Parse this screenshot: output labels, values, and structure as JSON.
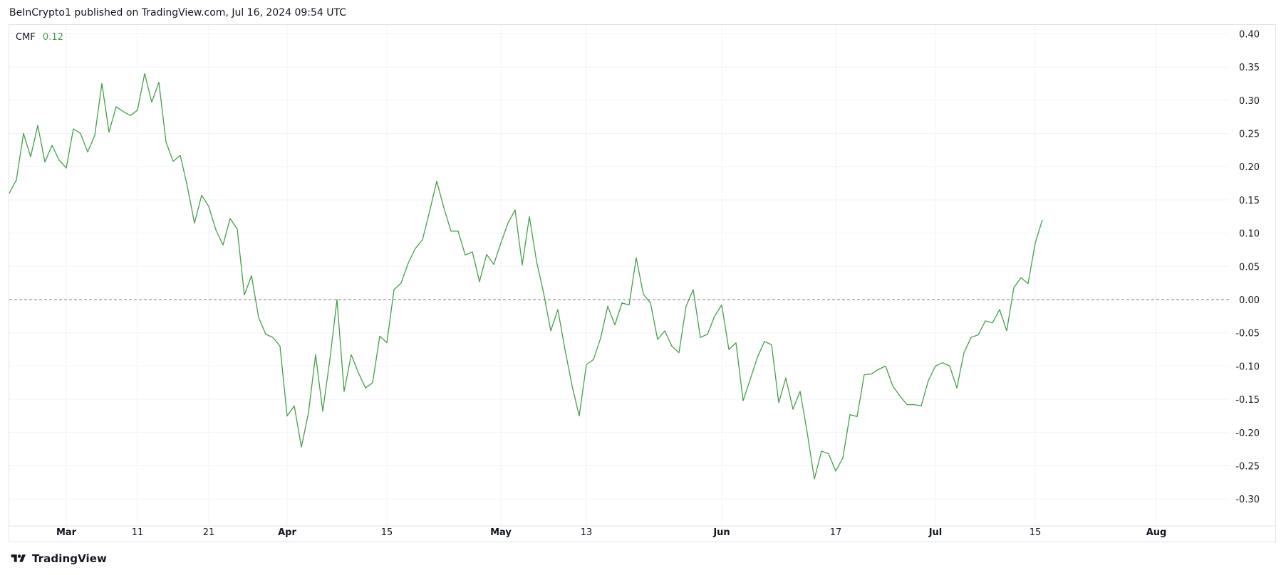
{
  "header": {
    "published": "BeInCrypto1 published on TradingView.com, Jul 16, 2024 09:54 UTC"
  },
  "legend": {
    "name": "CMF",
    "value": "0.12"
  },
  "brand": {
    "name": "TradingView"
  },
  "colors": {
    "line": "#43a047",
    "grid": "#f0f3fa",
    "zero": "#787b86"
  },
  "chart_data": {
    "type": "line",
    "indicator": "CMF",
    "ylim": [
      -0.33,
      0.41
    ],
    "y_ticks": [
      0.4,
      0.35,
      0.3,
      0.25,
      0.2,
      0.15,
      0.1,
      0.05,
      0.0,
      -0.05,
      -0.1,
      -0.15,
      -0.2,
      -0.25,
      -0.3
    ],
    "x_ticks": [
      {
        "label": "Mar",
        "date": "2024-03-01",
        "bold": true
      },
      {
        "label": "11",
        "date": "2024-03-11",
        "bold": false
      },
      {
        "label": "21",
        "date": "2024-03-21",
        "bold": false
      },
      {
        "label": "Apr",
        "date": "2024-04-01",
        "bold": true
      },
      {
        "label": "15",
        "date": "2024-04-15",
        "bold": false
      },
      {
        "label": "May",
        "date": "2024-05-01",
        "bold": true
      },
      {
        "label": "13",
        "date": "2024-05-13",
        "bold": false
      },
      {
        "label": "Jun",
        "date": "2024-06-01",
        "bold": true
      },
      {
        "label": "17",
        "date": "2024-06-17",
        "bold": false
      },
      {
        "label": "Jul",
        "date": "2024-07-01",
        "bold": true
      },
      {
        "label": "15",
        "date": "2024-07-15",
        "bold": false
      },
      {
        "label": "Aug",
        "date": "2024-08-01",
        "bold": true
      }
    ],
    "xlim": [
      "2024-02-22",
      "2024-08-05"
    ],
    "zero_line": 0.0,
    "grid": true,
    "series": [
      {
        "values": [
          [
            "2024-02-22",
            0.16
          ],
          [
            "2024-02-23",
            0.18
          ],
          [
            "2024-02-24",
            0.25
          ],
          [
            "2024-02-25",
            0.215
          ],
          [
            "2024-02-26",
            0.262
          ],
          [
            "2024-02-27",
            0.207
          ],
          [
            "2024-02-28",
            0.232
          ],
          [
            "2024-02-29",
            0.21
          ],
          [
            "2024-03-01",
            0.198
          ],
          [
            "2024-03-02",
            0.257
          ],
          [
            "2024-03-03",
            0.25
          ],
          [
            "2024-03-04",
            0.222
          ],
          [
            "2024-03-05",
            0.247
          ],
          [
            "2024-03-06",
            0.325
          ],
          [
            "2024-03-07",
            0.252
          ],
          [
            "2024-03-08",
            0.29
          ],
          [
            "2024-03-09",
            0.283
          ],
          [
            "2024-03-10",
            0.277
          ],
          [
            "2024-03-11",
            0.285
          ],
          [
            "2024-03-12",
            0.34
          ],
          [
            "2024-03-13",
            0.297
          ],
          [
            "2024-03-14",
            0.327
          ],
          [
            "2024-03-15",
            0.237
          ],
          [
            "2024-03-16",
            0.208
          ],
          [
            "2024-03-17",
            0.217
          ],
          [
            "2024-03-18",
            0.17
          ],
          [
            "2024-03-19",
            0.115
          ],
          [
            "2024-03-20",
            0.157
          ],
          [
            "2024-03-21",
            0.14
          ],
          [
            "2024-03-22",
            0.105
          ],
          [
            "2024-03-23",
            0.082
          ],
          [
            "2024-03-24",
            0.122
          ],
          [
            "2024-03-25",
            0.106
          ],
          [
            "2024-03-26",
            0.007
          ],
          [
            "2024-03-27",
            0.036
          ],
          [
            "2024-03-28",
            -0.027
          ],
          [
            "2024-03-29",
            -0.052
          ],
          [
            "2024-03-30",
            -0.057
          ],
          [
            "2024-03-31",
            -0.07
          ],
          [
            "2024-04-01",
            -0.175
          ],
          [
            "2024-04-02",
            -0.16
          ],
          [
            "2024-04-03",
            -0.222
          ],
          [
            "2024-04-04",
            -0.17
          ],
          [
            "2024-04-05",
            -0.083
          ],
          [
            "2024-04-06",
            -0.168
          ],
          [
            "2024-04-07",
            -0.09
          ],
          [
            "2024-04-08",
            0.0
          ],
          [
            "2024-04-09",
            -0.138
          ],
          [
            "2024-04-10",
            -0.083
          ],
          [
            "2024-04-11",
            -0.11
          ],
          [
            "2024-04-12",
            -0.133
          ],
          [
            "2024-04-13",
            -0.125
          ],
          [
            "2024-04-14",
            -0.055
          ],
          [
            "2024-04-15",
            -0.065
          ],
          [
            "2024-04-16",
            0.015
          ],
          [
            "2024-04-17",
            0.025
          ],
          [
            "2024-04-18",
            0.055
          ],
          [
            "2024-04-19",
            0.077
          ],
          [
            "2024-04-20",
            0.09
          ],
          [
            "2024-04-21",
            0.133
          ],
          [
            "2024-04-22",
            0.178
          ],
          [
            "2024-04-23",
            0.138
          ],
          [
            "2024-04-24",
            0.103
          ],
          [
            "2024-04-25",
            0.103
          ],
          [
            "2024-04-26",
            0.067
          ],
          [
            "2024-04-27",
            0.072
          ],
          [
            "2024-04-28",
            0.027
          ],
          [
            "2024-04-29",
            0.068
          ],
          [
            "2024-04-30",
            0.053
          ],
          [
            "2024-05-01",
            0.085
          ],
          [
            "2024-05-02",
            0.115
          ],
          [
            "2024-05-03",
            0.135
          ],
          [
            "2024-05-04",
            0.052
          ],
          [
            "2024-05-05",
            0.125
          ],
          [
            "2024-05-06",
            0.058
          ],
          [
            "2024-05-07",
            0.01
          ],
          [
            "2024-05-08",
            -0.047
          ],
          [
            "2024-05-09",
            -0.015
          ],
          [
            "2024-05-10",
            -0.075
          ],
          [
            "2024-05-11",
            -0.13
          ],
          [
            "2024-05-12",
            -0.175
          ],
          [
            "2024-05-13",
            -0.098
          ],
          [
            "2024-05-14",
            -0.09
          ],
          [
            "2024-05-15",
            -0.058
          ],
          [
            "2024-05-16",
            -0.01
          ],
          [
            "2024-05-17",
            -0.038
          ],
          [
            "2024-05-18",
            -0.005
          ],
          [
            "2024-05-19",
            -0.008
          ],
          [
            "2024-05-20",
            0.063
          ],
          [
            "2024-05-21",
            0.008
          ],
          [
            "2024-05-22",
            -0.005
          ],
          [
            "2024-05-23",
            -0.06
          ],
          [
            "2024-05-24",
            -0.047
          ],
          [
            "2024-05-25",
            -0.07
          ],
          [
            "2024-05-26",
            -0.08
          ],
          [
            "2024-05-27",
            -0.01
          ],
          [
            "2024-05-28",
            0.015
          ],
          [
            "2024-05-29",
            -0.057
          ],
          [
            "2024-05-30",
            -0.052
          ],
          [
            "2024-05-31",
            -0.025
          ],
          [
            "2024-06-01",
            -0.008
          ],
          [
            "2024-06-02",
            -0.075
          ],
          [
            "2024-06-03",
            -0.065
          ],
          [
            "2024-06-04",
            -0.152
          ],
          [
            "2024-06-05",
            -0.12
          ],
          [
            "2024-06-06",
            -0.087
          ],
          [
            "2024-06-07",
            -0.063
          ],
          [
            "2024-06-08",
            -0.068
          ],
          [
            "2024-06-09",
            -0.155
          ],
          [
            "2024-06-10",
            -0.118
          ],
          [
            "2024-06-11",
            -0.165
          ],
          [
            "2024-06-12",
            -0.138
          ],
          [
            "2024-06-13",
            -0.2
          ],
          [
            "2024-06-14",
            -0.27
          ],
          [
            "2024-06-15",
            -0.228
          ],
          [
            "2024-06-16",
            -0.232
          ],
          [
            "2024-06-17",
            -0.258
          ],
          [
            "2024-06-18",
            -0.238
          ],
          [
            "2024-06-19",
            -0.173
          ],
          [
            "2024-06-20",
            -0.176
          ],
          [
            "2024-06-21",
            -0.113
          ],
          [
            "2024-06-22",
            -0.112
          ],
          [
            "2024-06-23",
            -0.105
          ],
          [
            "2024-06-24",
            -0.1
          ],
          [
            "2024-06-25",
            -0.13
          ],
          [
            "2024-06-26",
            -0.145
          ],
          [
            "2024-06-27",
            -0.158
          ],
          [
            "2024-06-28",
            -0.158
          ],
          [
            "2024-06-29",
            -0.16
          ],
          [
            "2024-06-30",
            -0.122
          ],
          [
            "2024-07-01",
            -0.1
          ],
          [
            "2024-07-02",
            -0.095
          ],
          [
            "2024-07-03",
            -0.1
          ],
          [
            "2024-07-04",
            -0.133
          ],
          [
            "2024-07-05",
            -0.08
          ],
          [
            "2024-07-06",
            -0.057
          ],
          [
            "2024-07-07",
            -0.053
          ],
          [
            "2024-07-08",
            -0.032
          ],
          [
            "2024-07-09",
            -0.035
          ],
          [
            "2024-07-10",
            -0.015
          ],
          [
            "2024-07-11",
            -0.047
          ],
          [
            "2024-07-12",
            0.018
          ],
          [
            "2024-07-13",
            0.033
          ],
          [
            "2024-07-14",
            0.024
          ],
          [
            "2024-07-15",
            0.085
          ],
          [
            "2024-07-16",
            0.12
          ]
        ]
      }
    ]
  }
}
